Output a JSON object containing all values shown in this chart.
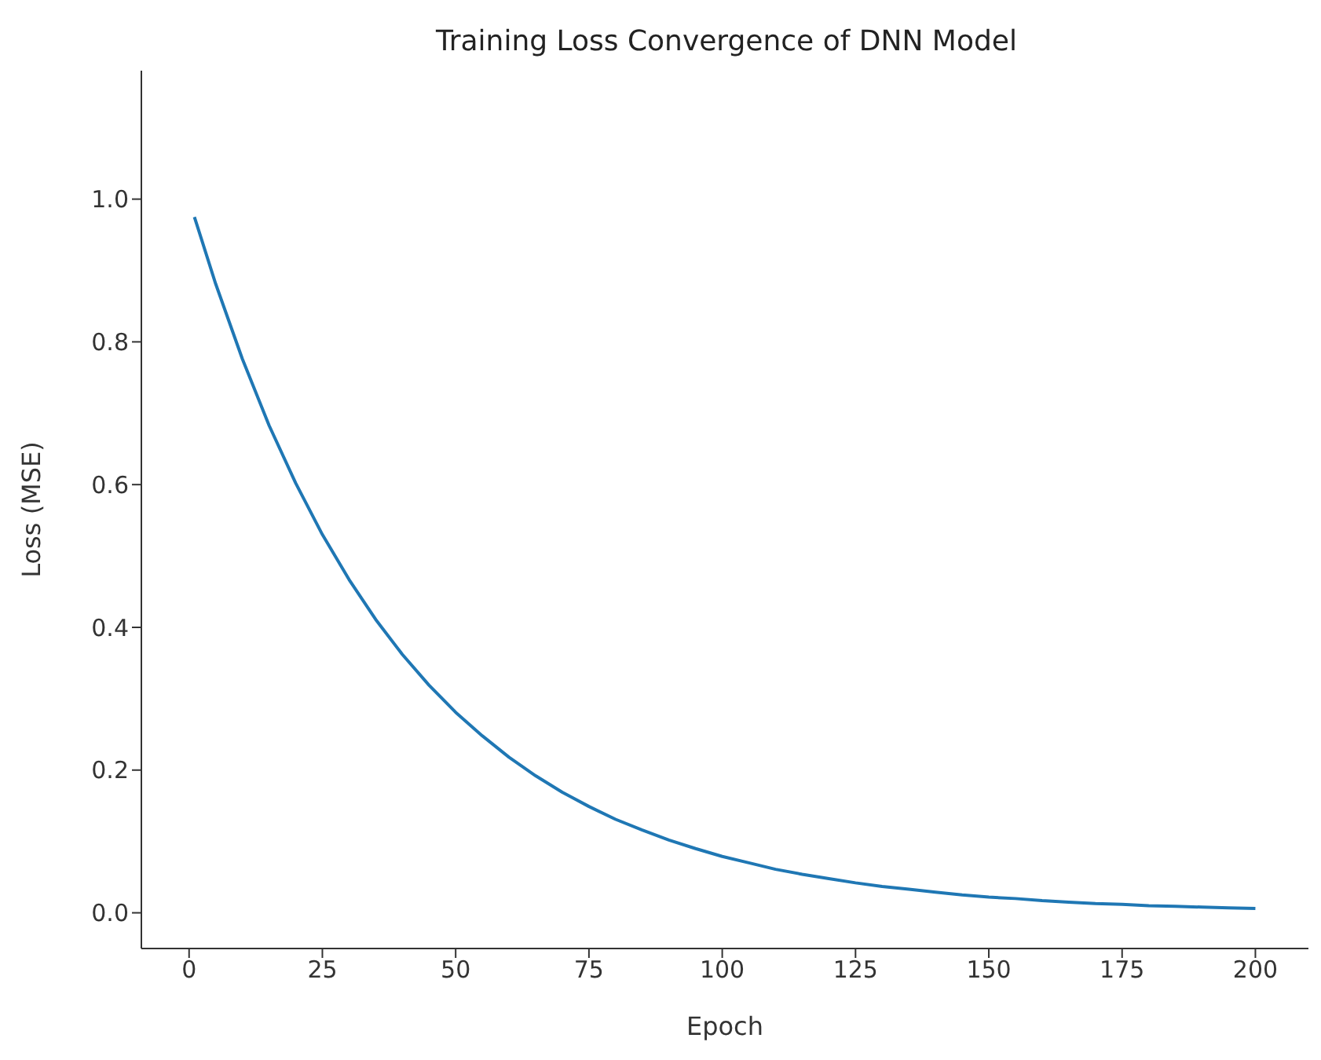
{
  "chart_data": {
    "type": "line",
    "title": "Training Loss Convergence of DNN Model",
    "xlabel": "Epoch",
    "ylabel": "Loss (MSE)",
    "x": [
      1,
      5,
      10,
      15,
      20,
      25,
      30,
      35,
      40,
      45,
      50,
      55,
      60,
      65,
      70,
      75,
      80,
      85,
      90,
      95,
      100,
      105,
      110,
      115,
      120,
      125,
      130,
      135,
      140,
      145,
      150,
      155,
      160,
      165,
      170,
      175,
      180,
      185,
      190,
      195,
      200
    ],
    "series": [
      {
        "color": "#1f77b4",
        "values": [
          0.975,
          0.881,
          0.776,
          0.683,
          0.602,
          0.53,
          0.467,
          0.411,
          0.362,
          0.319,
          0.281,
          0.248,
          0.218,
          0.192,
          0.169,
          0.149,
          0.131,
          0.116,
          0.102,
          0.09,
          0.079,
          0.07,
          0.061,
          0.054,
          0.048,
          0.042,
          0.037,
          0.033,
          0.029,
          0.025,
          0.022,
          0.02,
          0.017,
          0.015,
          0.013,
          0.012,
          0.01,
          0.009,
          0.008,
          0.007,
          0.006
        ]
      }
    ],
    "xlim": [
      -8.95,
      209.95
    ],
    "xticks": [
      0,
      25,
      50,
      75,
      100,
      125,
      150,
      175,
      200
    ],
    "ylim": [
      -0.05,
      1.18
    ],
    "yticks": [
      {
        "value": 0,
        "label": "0.0"
      },
      {
        "value": 0.2,
        "label": "0.2"
      },
      {
        "value": 0.4,
        "label": "0.4"
      },
      {
        "value": 0.6,
        "label": "0.6"
      },
      {
        "value": 0.8,
        "label": "0.8"
      },
      {
        "value": 1,
        "label": "1.0"
      }
    ],
    "grid": false,
    "legend": false,
    "marker": "none",
    "line_style": "solid"
  }
}
